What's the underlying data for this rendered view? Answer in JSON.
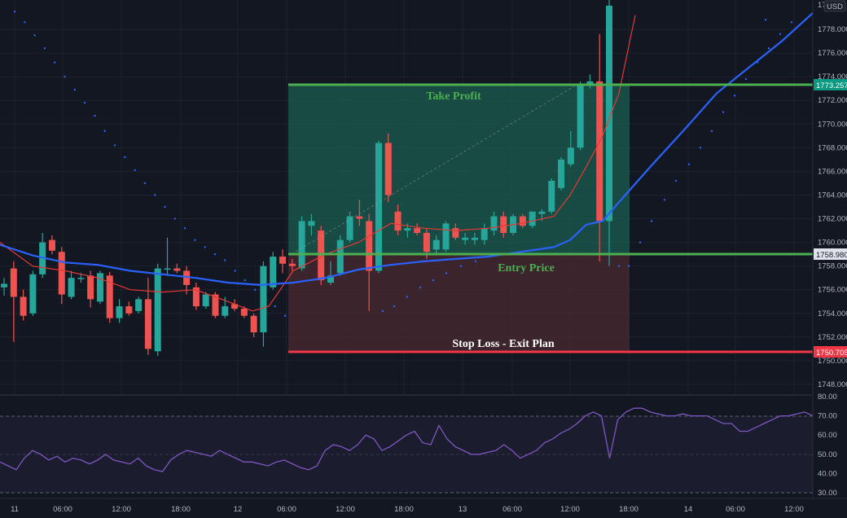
{
  "currency": "USD",
  "top_price_label": "17",
  "price_ticks": [
    "1778.000",
    "1776.000",
    "1774.000",
    "1772.000",
    "1770.000",
    "1768.000",
    "1766.000",
    "1764.000",
    "1762.000",
    "1760.000",
    "1758.000",
    "1756.000",
    "1754.000",
    "1752.000",
    "1750.000",
    "1748.000"
  ],
  "rsi_ticks": [
    "80.00",
    "70.00",
    "60.00",
    "50.00",
    "40.00",
    "30.00"
  ],
  "time_labels": [
    "11",
    "06:00",
    "12:00",
    "18:00",
    "12",
    "06:00",
    "12:00",
    "18:00",
    "13",
    "06:00",
    "12:00",
    "18:00",
    "14",
    "06:00",
    "12:00"
  ],
  "take_profit": {
    "label": "Take Profit",
    "price": "1773.257"
  },
  "entry": {
    "label": "Entry Price",
    "price": "1758.980"
  },
  "stop_loss": {
    "label": "Stop Loss - Exit Plan",
    "price": "1750.705"
  },
  "colors": {
    "background": "#131722",
    "bull": "#26a69a",
    "bear": "#ef5350",
    "ma_blue": "#2962ff",
    "ma_red": "#e53935",
    "take_profit_line": "#4caf50",
    "stop_loss_line": "#f23645",
    "profit_zone": "#1b5e50",
    "loss_zone": "#4a2a30",
    "rsi_line": "#7e57c2"
  },
  "chart_data": {
    "type": "candlestick",
    "price_range": [
      1747,
      1779
    ],
    "rsi_range": [
      28,
      82
    ],
    "candles": [
      {
        "o": 1756.2,
        "h": 1757.0,
        "l": 1755.5,
        "c": 1756.5
      },
      {
        "o": 1757.8,
        "h": 1758.4,
        "l": 1751.6,
        "c": 1755.4
      },
      {
        "o": 1755.4,
        "h": 1756.0,
        "l": 1753.4,
        "c": 1753.8
      },
      {
        "o": 1754.0,
        "h": 1757.6,
        "l": 1753.8,
        "c": 1757.3
      },
      {
        "o": 1757.3,
        "h": 1760.8,
        "l": 1757.0,
        "c": 1760.0
      },
      {
        "o": 1760.2,
        "h": 1760.6,
        "l": 1759.0,
        "c": 1759.3
      },
      {
        "o": 1759.2,
        "h": 1759.6,
        "l": 1754.8,
        "c": 1755.6
      },
      {
        "o": 1755.4,
        "h": 1757.6,
        "l": 1755.2,
        "c": 1757.0
      },
      {
        "o": 1757.0,
        "h": 1757.4,
        "l": 1756.6,
        "c": 1757.0
      },
      {
        "o": 1757.2,
        "h": 1757.6,
        "l": 1754.5,
        "c": 1755.2
      },
      {
        "o": 1755.0,
        "h": 1757.6,
        "l": 1754.8,
        "c": 1757.4
      },
      {
        "o": 1757.2,
        "h": 1757.5,
        "l": 1753.2,
        "c": 1753.6
      },
      {
        "o": 1753.6,
        "h": 1755.2,
        "l": 1753.2,
        "c": 1754.6
      },
      {
        "o": 1754.6,
        "h": 1755.0,
        "l": 1753.8,
        "c": 1754.0
      },
      {
        "o": 1754.2,
        "h": 1755.4,
        "l": 1754.0,
        "c": 1755.2
      },
      {
        "o": 1755.2,
        "h": 1757.0,
        "l": 1750.5,
        "c": 1751.0
      },
      {
        "o": 1750.8,
        "h": 1758.2,
        "l": 1750.4,
        "c": 1757.8
      },
      {
        "o": 1757.8,
        "h": 1760.4,
        "l": 1757.2,
        "c": 1757.8
      },
      {
        "o": 1757.8,
        "h": 1758.2,
        "l": 1757.4,
        "c": 1757.6
      },
      {
        "o": 1757.6,
        "h": 1758.0,
        "l": 1755.6,
        "c": 1756.4
      },
      {
        "o": 1756.2,
        "h": 1756.6,
        "l": 1754.3,
        "c": 1754.6
      },
      {
        "o": 1754.6,
        "h": 1755.8,
        "l": 1754.4,
        "c": 1755.6
      },
      {
        "o": 1755.6,
        "h": 1755.8,
        "l": 1753.6,
        "c": 1753.8
      },
      {
        "o": 1753.8,
        "h": 1755.4,
        "l": 1753.6,
        "c": 1754.6
      },
      {
        "o": 1754.8,
        "h": 1755.2,
        "l": 1754.2,
        "c": 1754.4
      },
      {
        "o": 1754.4,
        "h": 1754.6,
        "l": 1753.6,
        "c": 1753.8
      },
      {
        "o": 1753.8,
        "h": 1754.0,
        "l": 1752.0,
        "c": 1752.4
      },
      {
        "o": 1752.4,
        "h": 1758.4,
        "l": 1751.2,
        "c": 1758.0
      },
      {
        "o": 1756.2,
        "h": 1759.2,
        "l": 1756.0,
        "c": 1758.8
      },
      {
        "o": 1758.8,
        "h": 1759.4,
        "l": 1757.4,
        "c": 1758.2
      },
      {
        "o": 1758.2,
        "h": 1758.6,
        "l": 1757.6,
        "c": 1758.0
      },
      {
        "o": 1757.8,
        "h": 1762.2,
        "l": 1757.6,
        "c": 1761.8
      },
      {
        "o": 1761.4,
        "h": 1762.4,
        "l": 1760.6,
        "c": 1761.8
      },
      {
        "o": 1761.0,
        "h": 1761.4,
        "l": 1756.4,
        "c": 1756.8
      },
      {
        "o": 1756.6,
        "h": 1758.4,
        "l": 1756.4,
        "c": 1757.2
      },
      {
        "o": 1757.4,
        "h": 1760.6,
        "l": 1757.2,
        "c": 1760.2
      },
      {
        "o": 1760.2,
        "h": 1762.6,
        "l": 1760.0,
        "c": 1762.2
      },
      {
        "o": 1762.2,
        "h": 1763.6,
        "l": 1761.4,
        "c": 1762.0
      },
      {
        "o": 1761.8,
        "h": 1762.4,
        "l": 1754.2,
        "c": 1757.6
      },
      {
        "o": 1757.6,
        "h": 1768.6,
        "l": 1757.4,
        "c": 1768.4
      },
      {
        "o": 1768.4,
        "h": 1769.2,
        "l": 1763.4,
        "c": 1764.0
      },
      {
        "o": 1762.6,
        "h": 1763.2,
        "l": 1760.6,
        "c": 1761.0
      },
      {
        "o": 1761.0,
        "h": 1761.6,
        "l": 1760.4,
        "c": 1761.2
      },
      {
        "o": 1761.2,
        "h": 1761.6,
        "l": 1760.6,
        "c": 1760.8
      },
      {
        "o": 1760.8,
        "h": 1761.2,
        "l": 1758.6,
        "c": 1759.2
      },
      {
        "o": 1759.4,
        "h": 1760.6,
        "l": 1759.0,
        "c": 1760.2
      },
      {
        "o": 1759.4,
        "h": 1761.8,
        "l": 1759.2,
        "c": 1761.6
      },
      {
        "o": 1761.2,
        "h": 1761.6,
        "l": 1760.2,
        "c": 1760.4
      },
      {
        "o": 1760.2,
        "h": 1760.8,
        "l": 1759.8,
        "c": 1760.4
      },
      {
        "o": 1760.2,
        "h": 1760.8,
        "l": 1759.8,
        "c": 1760.4
      },
      {
        "o": 1760.2,
        "h": 1761.6,
        "l": 1759.8,
        "c": 1761.2
      },
      {
        "o": 1761.0,
        "h": 1762.6,
        "l": 1760.6,
        "c": 1762.2
      },
      {
        "o": 1762.2,
        "h": 1762.6,
        "l": 1760.4,
        "c": 1760.8
      },
      {
        "o": 1760.8,
        "h": 1762.4,
        "l": 1760.6,
        "c": 1762.2
      },
      {
        "o": 1762.2,
        "h": 1762.4,
        "l": 1761.2,
        "c": 1761.4
      },
      {
        "o": 1761.4,
        "h": 1762.6,
        "l": 1761.2,
        "c": 1762.6
      },
      {
        "o": 1762.4,
        "h": 1762.8,
        "l": 1761.8,
        "c": 1762.6
      },
      {
        "o": 1762.6,
        "h": 1765.4,
        "l": 1762.4,
        "c": 1765.2
      },
      {
        "o": 1764.6,
        "h": 1767.2,
        "l": 1764.4,
        "c": 1767.0
      },
      {
        "o": 1766.6,
        "h": 1769.4,
        "l": 1766.4,
        "c": 1768.0
      },
      {
        "o": 1768.0,
        "h": 1773.6,
        "l": 1767.8,
        "c": 1773.4
      },
      {
        "o": 1773.4,
        "h": 1774.2,
        "l": 1773.0,
        "c": 1773.6
      },
      {
        "o": 1773.6,
        "h": 1777.6,
        "l": 1758.4,
        "c": 1761.8
      },
      {
        "o": 1761.8,
        "h": 1782.0,
        "l": 1758.0,
        "c": 1780.0
      }
    ],
    "blue_ma": [
      [
        0,
        1759.8
      ],
      [
        40,
        1758.9
      ],
      [
        80,
        1758.3
      ],
      [
        120,
        1758.1
      ],
      [
        160,
        1757.6
      ],
      [
        200,
        1757.3
      ],
      [
        240,
        1757.0
      ],
      [
        280,
        1756.6
      ],
      [
        320,
        1756.4
      ],
      [
        360,
        1756.6
      ],
      [
        400,
        1757.0
      ],
      [
        440,
        1757.7
      ],
      [
        480,
        1758.1
      ],
      [
        520,
        1758.4
      ],
      [
        560,
        1758.6
      ],
      [
        600,
        1758.8
      ],
      [
        640,
        1759.2
      ],
      [
        680,
        1759.6
      ],
      [
        700,
        1760.2
      ],
      [
        720,
        1761.5
      ],
      [
        740,
        1761.8
      ],
      [
        760,
        1763.4
      ],
      [
        800,
        1766.5
      ],
      [
        840,
        1769.5
      ],
      [
        880,
        1772.6
      ],
      [
        920,
        1774.8
      ],
      [
        960,
        1777.0
      ],
      [
        1000,
        1779.5
      ]
    ],
    "red_ma": [
      [
        0,
        1760.0
      ],
      [
        40,
        1758.0
      ],
      [
        80,
        1757.6
      ],
      [
        120,
        1757.0
      ],
      [
        160,
        1756.0
      ],
      [
        200,
        1755.8
      ],
      [
        240,
        1756.0
      ],
      [
        280,
        1755.0
      ],
      [
        310,
        1754.2
      ],
      [
        330,
        1754.6
      ],
      [
        360,
        1757.6
      ],
      [
        400,
        1759.0
      ],
      [
        440,
        1760.0
      ],
      [
        480,
        1761.6
      ],
      [
        520,
        1761.2
      ],
      [
        560,
        1761.0
      ],
      [
        600,
        1761.2
      ],
      [
        640,
        1761.6
      ],
      [
        680,
        1762.2
      ],
      [
        700,
        1764.0
      ],
      [
        720,
        1766.4
      ],
      [
        740,
        1769.0
      ],
      [
        760,
        1772.6
      ],
      [
        780,
        1779.2
      ]
    ],
    "rsi": [
      46,
      44,
      42,
      48,
      52,
      50,
      47,
      49,
      46,
      48,
      47,
      45,
      47,
      50,
      47,
      46,
      45,
      48,
      44,
      42,
      41,
      47,
      50,
      52,
      51,
      50,
      49,
      52,
      50,
      48,
      46,
      46,
      45,
      44,
      46,
      47,
      45,
      43,
      42,
      44,
      52,
      55,
      54,
      52,
      55,
      60,
      58,
      52,
      54,
      57,
      60,
      62,
      56,
      55,
      65,
      58,
      54,
      52,
      50,
      50,
      51,
      52,
      55,
      52,
      48,
      50,
      52,
      56,
      58,
      61,
      63,
      66,
      70,
      72,
      70,
      48,
      68,
      72,
      74,
      74,
      72,
      71,
      70,
      70,
      71,
      70,
      70,
      70,
      68,
      66,
      66,
      62,
      62,
      64,
      66,
      68,
      70,
      70,
      71,
      72,
      70
    ],
    "psar_price": [
      1779.5,
      1778.6,
      1777.5,
      1776.4,
      1775.2,
      1774.0,
      1772.9,
      1771.8,
      1770.7,
      1769.4,
      1768.2,
      1767.2,
      1766.1,
      1765.0,
      1764.0,
      1763.0,
      1762.0,
      1761.2,
      1760.2,
      1759.6,
      1759.0,
      1758.5,
      1757.6,
      1756.8,
      1756.0,
      1755.2,
      1754.6,
      1753.8
    ]
  }
}
